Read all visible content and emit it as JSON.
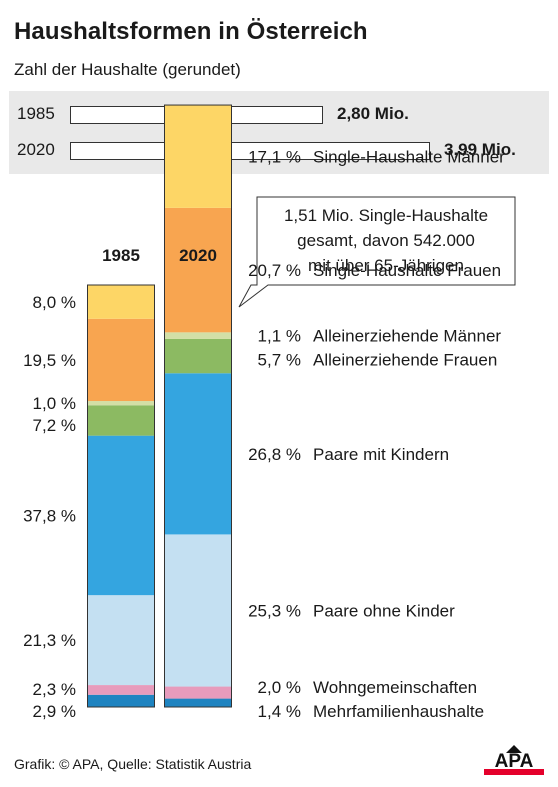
{
  "header": {
    "title": "Haushaltsformen in Österreich",
    "subtitle": "Zahl der Haushalte (gerundet)"
  },
  "totals": [
    {
      "year": "1985",
      "value": 2.8,
      "label": "2,80 Mio."
    },
    {
      "year": "2020",
      "value": 3.99,
      "label": "3,99 Mio."
    }
  ],
  "callout": {
    "lines": [
      "1,51 Mio. Single-Haushalte",
      "gesamt, davon 542.000",
      "mit über 65-Jährigen"
    ]
  },
  "chart_data": {
    "type": "bar",
    "stacked": true,
    "columns": [
      "1985",
      "2020"
    ],
    "series": [
      {
        "name": "Single-Haushalte Männer",
        "color": "#fdd666",
        "values": [
          8.0,
          17.1
        ],
        "labels": [
          "8,0 %",
          "17,1 %"
        ]
      },
      {
        "name": "Single-Haushalte Frauen",
        "color": "#f8a550",
        "values": [
          19.5,
          20.7
        ],
        "labels": [
          "19,5 %",
          "20,7 %"
        ]
      },
      {
        "name": "Alleinerziehende Männer",
        "color": "#d2dfa6",
        "values": [
          1.0,
          1.1
        ],
        "labels": [
          "1,0 %",
          "1,1 %"
        ]
      },
      {
        "name": "Alleinerziehende Frauen",
        "color": "#8cba62",
        "values": [
          7.2,
          5.7
        ],
        "labels": [
          "7,2 %",
          "5,7 %"
        ]
      },
      {
        "name": "Paare mit Kindern",
        "color": "#34a5e0",
        "values": [
          37.8,
          26.8
        ],
        "labels": [
          "37,8 %",
          "26,8 %"
        ]
      },
      {
        "name": "Paare ohne Kinder",
        "color": "#c4e0f2",
        "values": [
          21.3,
          25.3
        ],
        "labels": [
          "21,3 %",
          "25,3 %"
        ]
      },
      {
        "name": "Wohngemeinschaften",
        "color": "#e79bbc",
        "values": [
          2.3,
          2.0
        ],
        "labels": [
          "2,3 %",
          "2,0 %"
        ]
      },
      {
        "name": "Mehrfamilienhaushalte",
        "color": "#1f84c1",
        "values": [
          2.9,
          1.4
        ],
        "labels": [
          "2,9 %",
          "1,4 %"
        ]
      }
    ]
  },
  "footer": {
    "source": "Grafik: © APA, Quelle: Statistik Austria",
    "logo_text": "APA"
  },
  "colors": {
    "logo_red": "#e4002b",
    "logo_text": "#111111",
    "totals_bg": "#e9e9e9"
  }
}
